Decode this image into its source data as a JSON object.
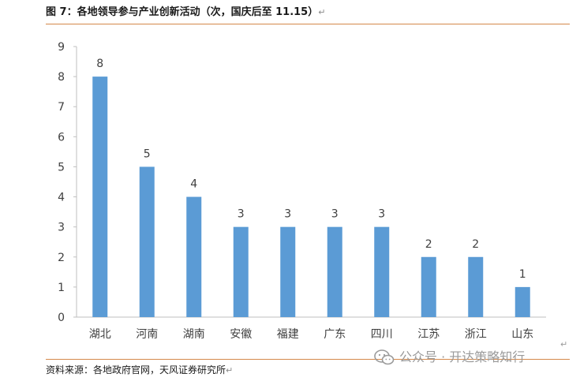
{
  "header": {
    "title": "图 7：各地领导参与产业创新活动（次，国庆后至 11.15）",
    "return_mark": "↵"
  },
  "footer": {
    "source": "资料来源：各地政府官网，天风证券研究所",
    "return_mark": "↵"
  },
  "watermark": {
    "text": "公众号 · 开达策略知行",
    "icon": "wechat-icon",
    "return_mark": "↵"
  },
  "colors": {
    "bar": "#5b9bd5",
    "axis": "#bfbfbf",
    "rule": "#d4884a"
  },
  "chart_data": {
    "type": "bar",
    "title": "图 7：各地领导参与产业创新活动（次，国庆后至 11.15）",
    "xlabel": "",
    "ylabel": "",
    "categories": [
      "湖北",
      "河南",
      "湖南",
      "安徽",
      "福建",
      "广东",
      "四川",
      "江苏",
      "浙江",
      "山东"
    ],
    "values": [
      8,
      5,
      4,
      3,
      3,
      3,
      3,
      2,
      2,
      1
    ],
    "ylim": [
      0,
      9
    ],
    "yticks": [
      0,
      1,
      2,
      3,
      4,
      5,
      6,
      7,
      8,
      9
    ],
    "grid": false,
    "data_labels": true
  }
}
